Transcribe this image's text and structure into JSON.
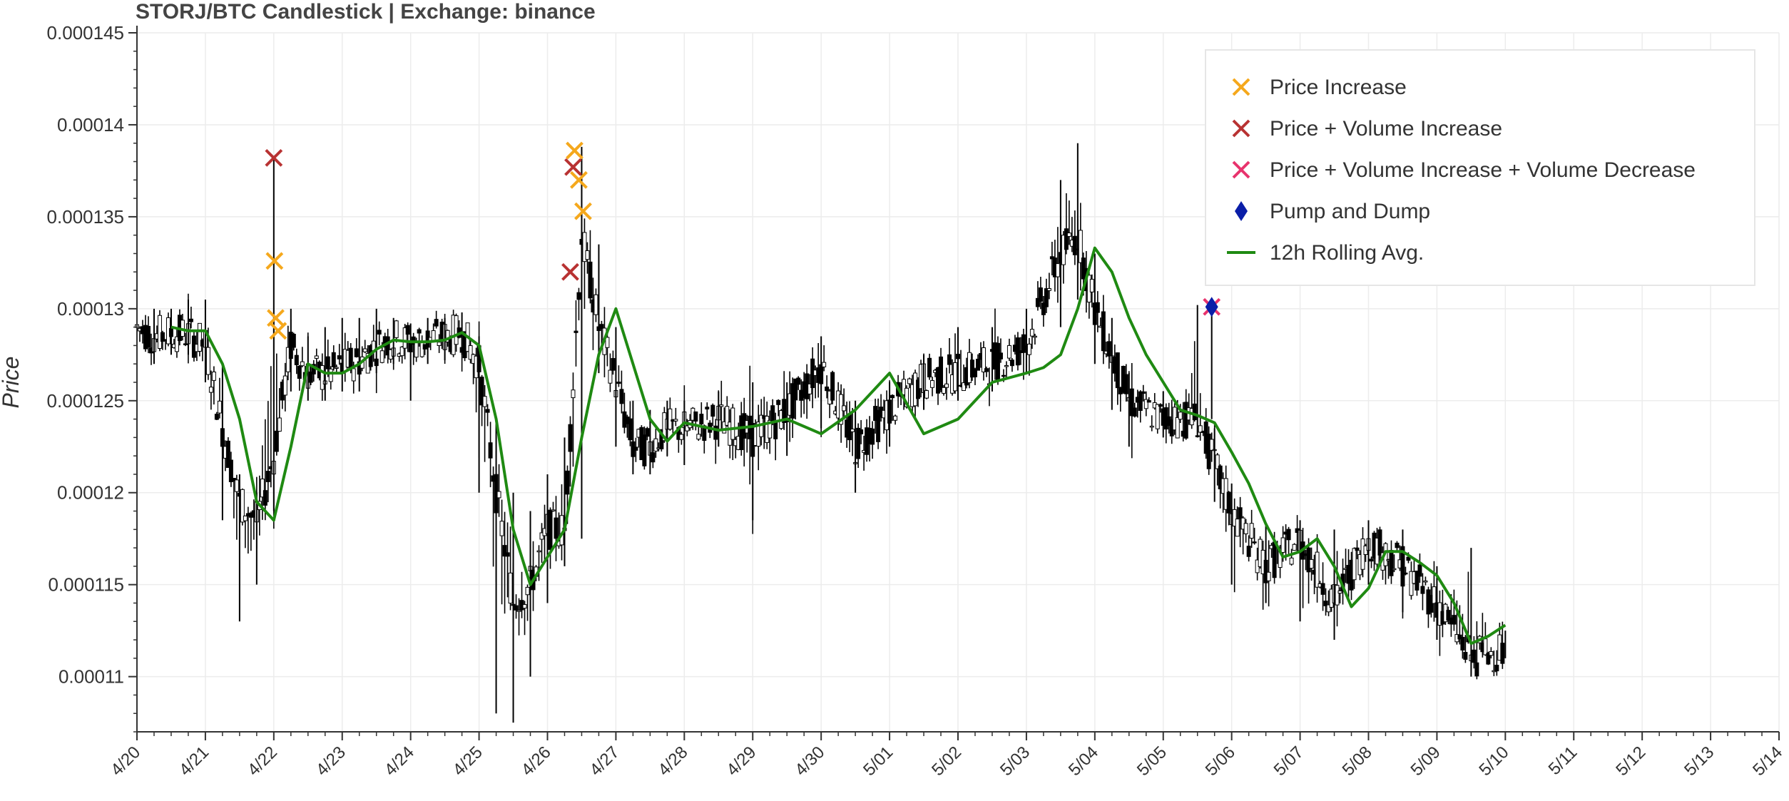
{
  "chart_data": {
    "type": "line",
    "title": "STORJ/BTC Candlestick | Exchange: binance",
    "xlabel": "",
    "ylabel": "Price",
    "ylim": [
      0.000107,
      0.000145
    ],
    "xlim": [
      "4/20",
      "5/14"
    ],
    "x_ticks": [
      "4/20",
      "4/21",
      "4/22",
      "4/23",
      "4/24",
      "4/25",
      "4/26",
      "4/27",
      "4/28",
      "4/29",
      "4/30",
      "5/01",
      "5/02",
      "5/03",
      "5/04",
      "5/05",
      "5/06",
      "5/07",
      "5/08",
      "5/09",
      "5/10",
      "5/11",
      "5/12",
      "5/13",
      "5/14"
    ],
    "y_ticks": [
      "0.00011",
      "0.000115",
      "0.00012",
      "0.000125",
      "0.00013",
      "0.000135",
      "0.00014",
      "0.000145"
    ],
    "grid": true,
    "legend_position": "top-right",
    "series": [
      {
        "name": "12h Rolling Avg.",
        "kind": "line",
        "color": "#1f8a12",
        "x": [
          "4/20 12:00",
          "4/20 18:00",
          "4/21 00:00",
          "4/21 06:00",
          "4/21 12:00",
          "4/21 18:00",
          "4/22 00:00",
          "4/22 06:00",
          "4/22 12:00",
          "4/22 18:00",
          "4/23 00:00",
          "4/23 06:00",
          "4/23 12:00",
          "4/23 18:00",
          "4/24 00:00",
          "4/24 06:00",
          "4/24 12:00",
          "4/24 18:00",
          "4/25 00:00",
          "4/25 06:00",
          "4/25 12:00",
          "4/25 18:00",
          "4/26 00:00",
          "4/26 06:00",
          "4/26 12:00",
          "4/26 18:00",
          "4/27 00:00",
          "4/27 06:00",
          "4/27 12:00",
          "4/27 18:00",
          "4/28 00:00",
          "4/28 12:00",
          "4/29 00:00",
          "4/29 12:00",
          "4/30 00:00",
          "4/30 12:00",
          "5/01 00:00",
          "5/01 12:00",
          "5/02 00:00",
          "5/02 12:00",
          "5/03 00:00",
          "5/03 06:00",
          "5/03 12:00",
          "5/03 18:00",
          "5/04 00:00",
          "5/04 06:00",
          "5/04 12:00",
          "5/04 18:00",
          "5/05 00:00",
          "5/05 06:00",
          "5/05 12:00",
          "5/05 18:00",
          "5/06 00:00",
          "5/06 06:00",
          "5/06 12:00",
          "5/06 18:00",
          "5/07 00:00",
          "5/07 06:00",
          "5/07 12:00",
          "5/07 18:00",
          "5/08 00:00",
          "5/08 06:00",
          "5/08 12:00",
          "5/08 18:00",
          "5/09 00:00",
          "5/09 06:00",
          "5/09 12:00",
          "5/09 18:00",
          "5/10 00:00"
        ],
        "y": [
          0.000129,
          0.0001288,
          0.0001288,
          0.000127,
          0.000124,
          0.0001195,
          0.0001185,
          0.0001225,
          0.000127,
          0.0001265,
          0.0001265,
          0.000127,
          0.0001278,
          0.0001283,
          0.0001282,
          0.0001282,
          0.0001283,
          0.0001287,
          0.000128,
          0.000124,
          0.000118,
          0.000115,
          0.0001165,
          0.000118,
          0.000123,
          0.0001275,
          0.00013,
          0.000127,
          0.000124,
          0.0001228,
          0.0001238,
          0.0001234,
          0.0001236,
          0.000124,
          0.0001232,
          0.0001245,
          0.0001265,
          0.0001232,
          0.000124,
          0.000126,
          0.0001265,
          0.0001268,
          0.0001275,
          0.00013,
          0.0001333,
          0.000132,
          0.0001295,
          0.0001275,
          0.000126,
          0.0001245,
          0.0001242,
          0.0001238,
          0.0001222,
          0.0001205,
          0.0001183,
          0.0001165,
          0.0001168,
          0.0001175,
          0.000116,
          0.0001138,
          0.0001148,
          0.0001168,
          0.0001168,
          0.0001162,
          0.0001155,
          0.000114,
          0.0001118,
          0.0001122,
          0.0001128
        ]
      },
      {
        "name": "Price",
        "kind": "candlestick",
        "color": "#000000",
        "x": [
          "4/20 00:00",
          "4/20 06:00",
          "4/20 12:00",
          "4/20 18:00",
          "4/21 00:00",
          "4/21 06:00",
          "4/21 12:00",
          "4/21 18:00",
          "4/22 00:00",
          "4/22 06:00",
          "4/22 12:00",
          "4/22 18:00",
          "4/23 00:00",
          "4/23 06:00",
          "4/23 12:00",
          "4/23 18:00",
          "4/24 00:00",
          "4/24 06:00",
          "4/24 12:00",
          "4/24 18:00",
          "4/25 00:00",
          "4/25 06:00",
          "4/25 12:00",
          "4/25 18:00",
          "4/26 00:00",
          "4/26 06:00",
          "4/26 12:00",
          "4/26 18:00",
          "4/27 00:00",
          "4/27 06:00",
          "4/27 12:00",
          "4/27 18:00",
          "4/28 00:00",
          "4/28 12:00",
          "4/29 00:00",
          "4/29 12:00",
          "4/30 00:00",
          "4/30 12:00",
          "5/01 00:00",
          "5/01 12:00",
          "5/02 00:00",
          "5/02 12:00",
          "5/03 00:00",
          "5/03 12:00",
          "5/03 18:00",
          "5/04 00:00",
          "5/04 06:00",
          "5/04 12:00",
          "5/05 00:00",
          "5/05 12:00",
          "5/05 18:00",
          "5/06 00:00",
          "5/06 12:00",
          "5/07 00:00",
          "5/07 12:00",
          "5/08 00:00",
          "5/08 12:00",
          "5/09 00:00",
          "5/09 12:00",
          "5/10 00:00"
        ],
        "y": [
          0.000129,
          0.0001285,
          0.0001287,
          0.0001286,
          0.000128,
          0.0001235,
          0.0001195,
          0.0001185,
          0.000122,
          0.000128,
          0.0001265,
          0.0001264,
          0.0001268,
          0.0001272,
          0.000128,
          0.0001284,
          0.0001282,
          0.0001283,
          0.0001285,
          0.0001287,
          0.000127,
          0.00012,
          0.000114,
          0.000115,
          0.000118,
          0.000118,
          0.000134,
          0.000129,
          0.000126,
          0.0001225,
          0.0001225,
          0.0001235,
          0.0001235,
          0.000124,
          0.000123,
          0.0001245,
          0.000127,
          0.0001225,
          0.0001245,
          0.0001262,
          0.0001265,
          0.000127,
          0.000128,
          0.000133,
          0.000134,
          0.00013,
          0.0001275,
          0.000125,
          0.000124,
          0.000124,
          0.0001215,
          0.000119,
          0.000116,
          0.0001175,
          0.000114,
          0.0001175,
          0.000116,
          0.000114,
          0.000111,
          0.0001115
        ],
        "high": [
          0.0001325,
          0.00013,
          0.00013,
          0.0001305,
          0.0001305,
          0.000127,
          0.000121,
          0.00012,
          0.0001382,
          0.00013,
          0.0001285,
          0.000129,
          0.0001295,
          0.0001295,
          0.00013,
          0.0001295,
          0.0001292,
          0.0001295,
          0.0001295,
          0.0001298,
          0.0001285,
          0.000124,
          0.00012,
          0.000119,
          0.000121,
          0.000123,
          0.0001388,
          0.0001335,
          0.000129,
          0.000125,
          0.0001245,
          0.000125,
          0.000125,
          0.0001255,
          0.000126,
          0.000126,
          0.0001285,
          0.000125,
          0.000126,
          0.0001275,
          0.000129,
          0.000129,
          0.00013,
          0.000137,
          0.000139,
          0.000133,
          0.0001295,
          0.0001265,
          0.0001255,
          0.0001302,
          0.0001235,
          0.0001205,
          0.0001183,
          0.0001185,
          0.000118,
          0.0001185,
          0.000118,
          0.000116,
          0.000117,
          0.0001125
        ],
        "low": [
          0.0001275,
          0.000127,
          0.0001275,
          0.0001275,
          0.000126,
          0.0001185,
          0.000113,
          0.000115,
          0.000119,
          0.0001255,
          0.000125,
          0.000125,
          0.0001255,
          0.0001255,
          0.0001265,
          0.000127,
          0.000125,
          0.000127,
          0.0001272,
          0.0001275,
          0.00012,
          0.000108,
          0.0001075,
          0.00011,
          0.000114,
          0.000116,
          0.0001175,
          0.0001265,
          0.0001225,
          0.000121,
          0.000121,
          0.000122,
          0.0001215,
          0.0001225,
          0.0001185,
          0.000122,
          0.0001235,
          0.00012,
          0.0001225,
          0.0001245,
          0.000125,
          0.0001255,
          0.0001265,
          0.000129,
          0.0001305,
          0.000127,
          0.0001245,
          0.0001225,
          0.000123,
          0.000123,
          0.0001195,
          0.000115,
          0.000114,
          0.000113,
          0.000112,
          0.000115,
          0.0001135,
          0.000112,
          0.00011,
          0.000111
        ]
      },
      {
        "name": "Price Increase",
        "kind": "marker-x",
        "color": "#f5a81c",
        "x": [
          "4/22 00:15",
          "4/22 00:40",
          "4/22 01:30",
          "4/26 09:30",
          "4/26 11:00",
          "4/26 12:30"
        ],
        "y": [
          0.0001326,
          0.0001295,
          0.0001288,
          0.0001386,
          0.000137,
          0.0001353
        ]
      },
      {
        "name": "Price + Volume Increase",
        "kind": "marker-x",
        "color": "#b83232",
        "x": [
          "4/22 00:00",
          "4/26 08:00",
          "4/26 09:00"
        ],
        "y": [
          0.0001382,
          0.000132,
          0.0001377
        ]
      },
      {
        "name": "Price + Volume Increase + Volume Decrease",
        "kind": "marker-x",
        "color": "#e8336d",
        "x": [
          "5/05 17:00"
        ],
        "y": [
          0.0001301
        ]
      },
      {
        "name": "Pump and Dump",
        "kind": "marker-diamond",
        "color": "#0a1ea8",
        "x": [
          "5/05 17:00"
        ],
        "y": [
          0.0001301
        ]
      }
    ]
  },
  "legend": {
    "items": [
      {
        "label": "Price Increase",
        "color": "#f5a81c",
        "marker": "x-mark"
      },
      {
        "label": "Price + Volume Increase",
        "color": "#b83232",
        "marker": "x-mark"
      },
      {
        "label": "Price + Volume Increase + Volume Decrease",
        "color": "#e8336d",
        "marker": "x-mark"
      },
      {
        "label": "Pump and Dump",
        "color": "#0a1ea8",
        "marker": "diamond"
      },
      {
        "label": "12h Rolling Avg.",
        "color": "#1f8a12",
        "marker": "line"
      }
    ]
  }
}
